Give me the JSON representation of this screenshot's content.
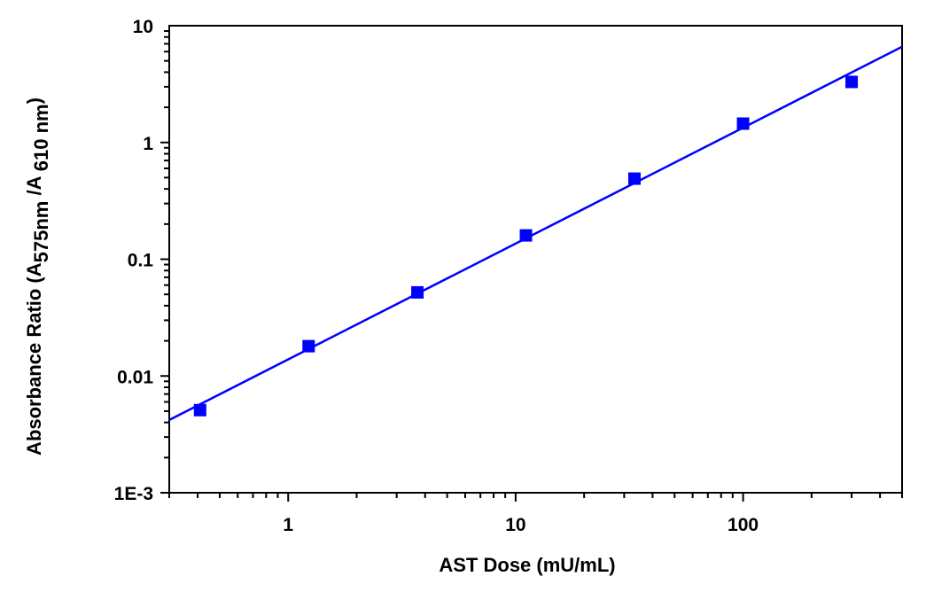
{
  "chart_data": {
    "type": "scatter",
    "title": "",
    "xlabel": "AST Dose (mU/mL)",
    "ylabel_parts": {
      "prefix": "Absorbance Ratio (A",
      "sub1": "575nm",
      "mid": " /A ",
      "sub2": "610 nm",
      "suffix": ")"
    },
    "xscale": "log",
    "yscale": "log",
    "xlim": [
      0.3,
      500
    ],
    "ylim": [
      0.001,
      10
    ],
    "x_ticks": [
      {
        "value": 1,
        "label": "1"
      },
      {
        "value": 10,
        "label": "10"
      },
      {
        "value": 100,
        "label": "100"
      }
    ],
    "y_ticks": [
      {
        "value": 0.001,
        "label": "1E-3"
      },
      {
        "value": 0.01,
        "label": "0.01"
      },
      {
        "value": 0.1,
        "label": "0.1"
      },
      {
        "value": 1,
        "label": "1"
      },
      {
        "value": 10,
        "label": "10"
      }
    ],
    "grid": false,
    "series": [
      {
        "name": "data",
        "marker": "square",
        "color": "#0000ff",
        "x": [
          0.41,
          1.23,
          3.7,
          11.1,
          33.3,
          100,
          300
        ],
        "y": [
          0.0051,
          0.018,
          0.052,
          0.16,
          0.49,
          1.45,
          3.3
        ]
      },
      {
        "name": "fit",
        "type": "line",
        "color": "#0000ff",
        "x": [
          0.3,
          500
        ],
        "y": [
          0.0042,
          6.6
        ]
      }
    ]
  }
}
